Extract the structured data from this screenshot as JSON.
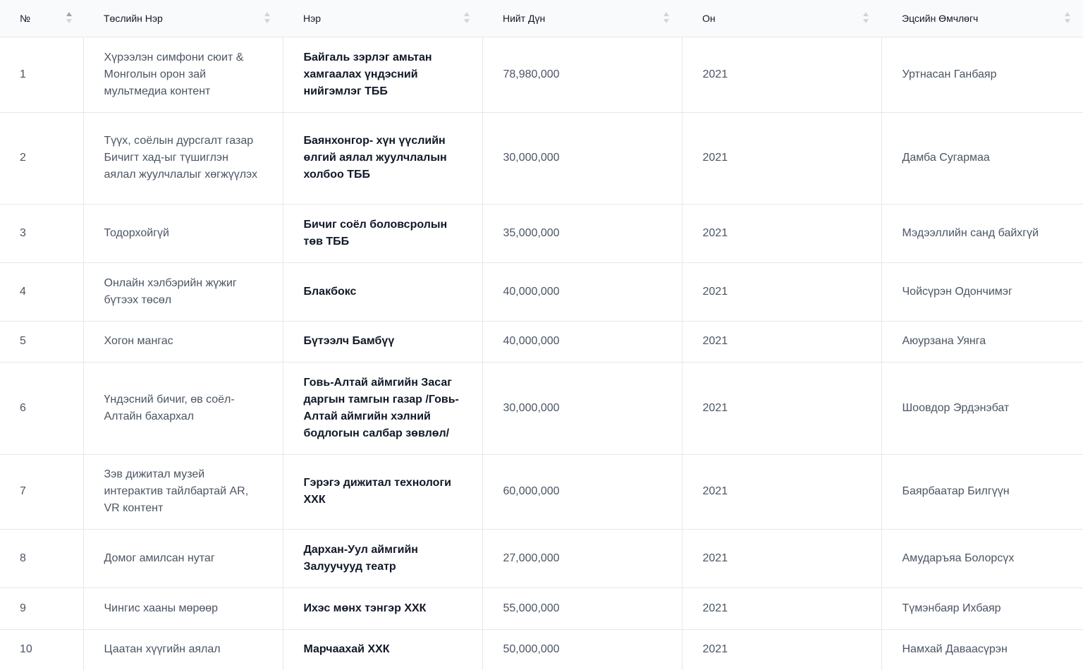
{
  "table": {
    "headers": [
      "№",
      "Төслийн Нэр",
      "Нэр",
      "Нийт Дүн",
      "Он",
      "Эцсийн Өмчлөгч"
    ],
    "rows": [
      {
        "no": "1",
        "project": "Хүрээлэн симфони сюит & Монголын орон зай мультмедиа контент",
        "name": "Байгаль зэрлэг амьтан хамгаалах үндэсний нийгэмлэг ТББ",
        "amount": "78,980,000",
        "year": "2021",
        "owner": "Уртнасан Ганбаяр"
      },
      {
        "no": "2",
        "project": "Түүх, соёлын дурсгалт газар Бичигт хад-ыг түшиглэн аялал жуулчлалыг хөгжүүлэх",
        "name": "Баянхонгор- хүн үүслийн өлгий аялал жуулчлалын холбоо ТББ",
        "amount": "30,000,000",
        "year": "2021",
        "owner": "Дамба Сугармаа"
      },
      {
        "no": "3",
        "project": "Тодорхойгүй",
        "name": "Бичиг соёл боловсролын төв ТББ",
        "amount": "35,000,000",
        "year": "2021",
        "owner": "Мэдээллийн санд байхгүй"
      },
      {
        "no": "4",
        "project": "Онлайн хэлбэрийн жүжиг бүтээх төсөл",
        "name": "Блакбокс",
        "amount": "40,000,000",
        "year": "2021",
        "owner": "Чойсүрэн Одончимэг"
      },
      {
        "no": "5",
        "project": "Хогон мангас",
        "name": "Бүтээлч Бамбүү",
        "amount": "40,000,000",
        "year": "2021",
        "owner": "Аюурзана Уянга"
      },
      {
        "no": "6",
        "project": "Үндэсний бичиг, өв соёл- Алтайн бахархал",
        "name": "Говь-Алтай аймгийн Засаг даргын тамгын газар /Говь-Алтай аймгийн хэлний бодлогын салбар зөвлөл/",
        "amount": "30,000,000",
        "year": "2021",
        "owner": "Шоовдор Эрдэнэбат"
      },
      {
        "no": "7",
        "project": "Зэв дижитал музей интерактив тайлбартай AR, VR контент",
        "name": "Гэрэгэ дижитал технологи ХХК",
        "amount": "60,000,000",
        "year": "2021",
        "owner": "Баярбаатар Билгүүн"
      },
      {
        "no": "8",
        "project": "Домог амилсан нутаг",
        "name": "Дархан-Уул аймгийн Залуучууд театр",
        "amount": "27,000,000",
        "year": "2021",
        "owner": "Амударъяа Болорсүх"
      },
      {
        "no": "9",
        "project": "Чингис хааны мөрөөр",
        "name": "Ихэс мөнх тэнгэр ХХК",
        "amount": "55,000,000",
        "year": "2021",
        "owner": "Түмэнбаяр Ихбаяр"
      },
      {
        "no": "10",
        "project": "Цаатан хүүгийн аялал",
        "name": "Марчаахай ХХК",
        "amount": "50,000,000",
        "year": "2021",
        "owner": "Намхай Даваасүрэн"
      }
    ]
  }
}
